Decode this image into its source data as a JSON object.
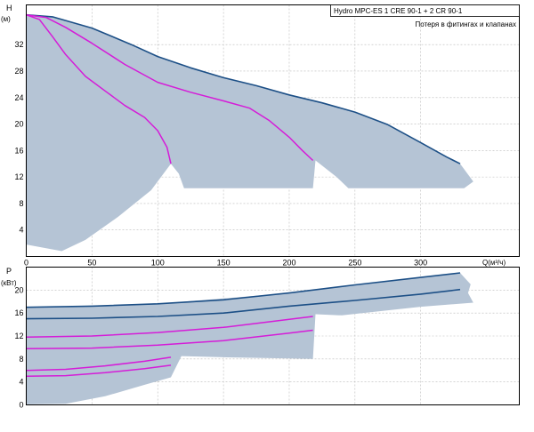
{
  "colors": {
    "region": "#b5c4d5",
    "max_curve": "#1c4f86",
    "mid_curve": "#d51cd8",
    "grid": "#b9b9b9"
  },
  "legend": {
    "line1": "Hydro MPC-ES 1 CRE 90-1  +  2 CR 90-1",
    "line2": "Потеря в фитингах и клапанах"
  },
  "chart_data": [
    {
      "type": "line",
      "title": "",
      "ylabel": "H",
      "yunit": "(м)",
      "xlabel": "Q(м³/ч)",
      "xlim": [
        0,
        375
      ],
      "ylim": [
        0,
        38
      ],
      "xticks": [
        0,
        50,
        100,
        150,
        200,
        250,
        300
      ],
      "yticks": [
        4,
        8,
        12,
        16,
        20,
        24,
        28,
        32
      ],
      "grid": true,
      "legend_position": "top-right",
      "operating_region": [
        [
          0,
          36.5
        ],
        [
          20,
          36.2
        ],
        [
          50,
          34.5
        ],
        [
          80,
          32.0
        ],
        [
          100,
          30.2
        ],
        [
          125,
          28.5
        ],
        [
          150,
          27.0
        ],
        [
          175,
          25.8
        ],
        [
          200,
          24.4
        ],
        [
          225,
          23.2
        ],
        [
          250,
          21.8
        ],
        [
          275,
          19.9
        ],
        [
          300,
          17.2
        ],
        [
          320,
          15.0
        ],
        [
          330,
          14.0
        ],
        [
          340,
          11.3
        ],
        [
          333,
          10.3
        ],
        [
          245,
          10.3
        ],
        [
          236,
          12.0
        ],
        [
          220,
          14.5
        ],
        [
          218,
          10.3
        ],
        [
          120,
          10.3
        ],
        [
          116,
          12.5
        ],
        [
          110,
          14.0
        ],
        [
          95,
          10.0
        ],
        [
          70,
          6.0
        ],
        [
          45,
          2.5
        ],
        [
          27,
          0.8
        ],
        [
          0,
          1.8
        ]
      ],
      "series": [
        {
          "role": "max",
          "points": [
            [
              0,
              36.5
            ],
            [
              20,
              36.2
            ],
            [
              50,
              34.5
            ],
            [
              80,
              32.0
            ],
            [
              100,
              30.2
            ],
            [
              125,
              28.5
            ],
            [
              150,
              27.0
            ],
            [
              175,
              25.8
            ],
            [
              200,
              24.4
            ],
            [
              225,
              23.2
            ],
            [
              250,
              21.8
            ],
            [
              275,
              19.9
            ],
            [
              300,
              17.2
            ],
            [
              320,
              15.0
            ],
            [
              330,
              14.0
            ]
          ]
        },
        {
          "role": "mid",
          "points": [
            [
              0,
              36.5
            ],
            [
              15,
              36.1
            ],
            [
              30,
              34.6
            ],
            [
              50,
              32.2
            ],
            [
              75,
              29.0
            ],
            [
              100,
              26.3
            ],
            [
              125,
              24.8
            ],
            [
              150,
              23.5
            ],
            [
              170,
              22.4
            ],
            [
              185,
              20.5
            ],
            [
              200,
              18.0
            ],
            [
              210,
              16.0
            ],
            [
              218,
              14.5
            ]
          ]
        },
        {
          "role": "mid",
          "points": [
            [
              0,
              36.5
            ],
            [
              10,
              35.8
            ],
            [
              20,
              33.2
            ],
            [
              30,
              30.5
            ],
            [
              45,
              27.2
            ],
            [
              60,
              25.0
            ],
            [
              75,
              22.8
            ],
            [
              90,
              21.0
            ],
            [
              100,
              19.0
            ],
            [
              107,
              16.5
            ],
            [
              110,
              14.0
            ]
          ]
        }
      ]
    },
    {
      "type": "line",
      "title": "",
      "ylabel": "P",
      "yunit": "(кВт)",
      "xlim": [
        0,
        375
      ],
      "ylim": [
        0,
        24
      ],
      "yticks": [
        0,
        4,
        8,
        12,
        16,
        20
      ],
      "grid": true,
      "operating_region": [
        [
          0,
          17.0
        ],
        [
          100,
          17.6
        ],
        [
          200,
          19.5
        ],
        [
          300,
          22.2
        ],
        [
          330,
          23.0
        ],
        [
          338,
          21.0
        ],
        [
          336,
          19.5
        ],
        [
          340,
          17.8
        ],
        [
          300,
          17.1
        ],
        [
          240,
          15.6
        ],
        [
          220,
          15.8
        ],
        [
          218,
          8.0
        ],
        [
          200,
          8.1
        ],
        [
          150,
          8.3
        ],
        [
          118,
          8.5
        ],
        [
          110,
          4.8
        ],
        [
          90,
          3.5
        ],
        [
          60,
          1.5
        ],
        [
          30,
          0.2
        ],
        [
          0,
          0.1
        ]
      ],
      "series": [
        {
          "role": "max",
          "points": [
            [
              0,
              17.0
            ],
            [
              50,
              17.2
            ],
            [
              100,
              17.6
            ],
            [
              150,
              18.3
            ],
            [
              200,
              19.5
            ],
            [
              250,
              20.9
            ],
            [
              300,
              22.2
            ],
            [
              330,
              23.0
            ]
          ]
        },
        {
          "role": "max",
          "points": [
            [
              0,
              15.0
            ],
            [
              50,
              15.1
            ],
            [
              100,
              15.4
            ],
            [
              150,
              16.0
            ],
            [
              200,
              17.2
            ],
            [
              250,
              18.2
            ],
            [
              300,
              19.3
            ],
            [
              330,
              20.1
            ]
          ]
        },
        {
          "role": "mid",
          "points": [
            [
              0,
              11.8
            ],
            [
              50,
              12.0
            ],
            [
              100,
              12.6
            ],
            [
              150,
              13.5
            ],
            [
              200,
              14.9
            ],
            [
              218,
              15.4
            ]
          ]
        },
        {
          "role": "mid",
          "points": [
            [
              0,
              9.8
            ],
            [
              50,
              9.9
            ],
            [
              100,
              10.4
            ],
            [
              150,
              11.2
            ],
            [
              200,
              12.5
            ],
            [
              218,
              13.0
            ]
          ]
        },
        {
          "role": "mid",
          "points": [
            [
              0,
              6.0
            ],
            [
              30,
              6.2
            ],
            [
              60,
              6.8
            ],
            [
              90,
              7.6
            ],
            [
              110,
              8.3
            ]
          ]
        },
        {
          "role": "mid",
          "points": [
            [
              0,
              5.0
            ],
            [
              30,
              5.1
            ],
            [
              60,
              5.6
            ],
            [
              90,
              6.3
            ],
            [
              110,
              6.9
            ]
          ]
        }
      ]
    }
  ]
}
